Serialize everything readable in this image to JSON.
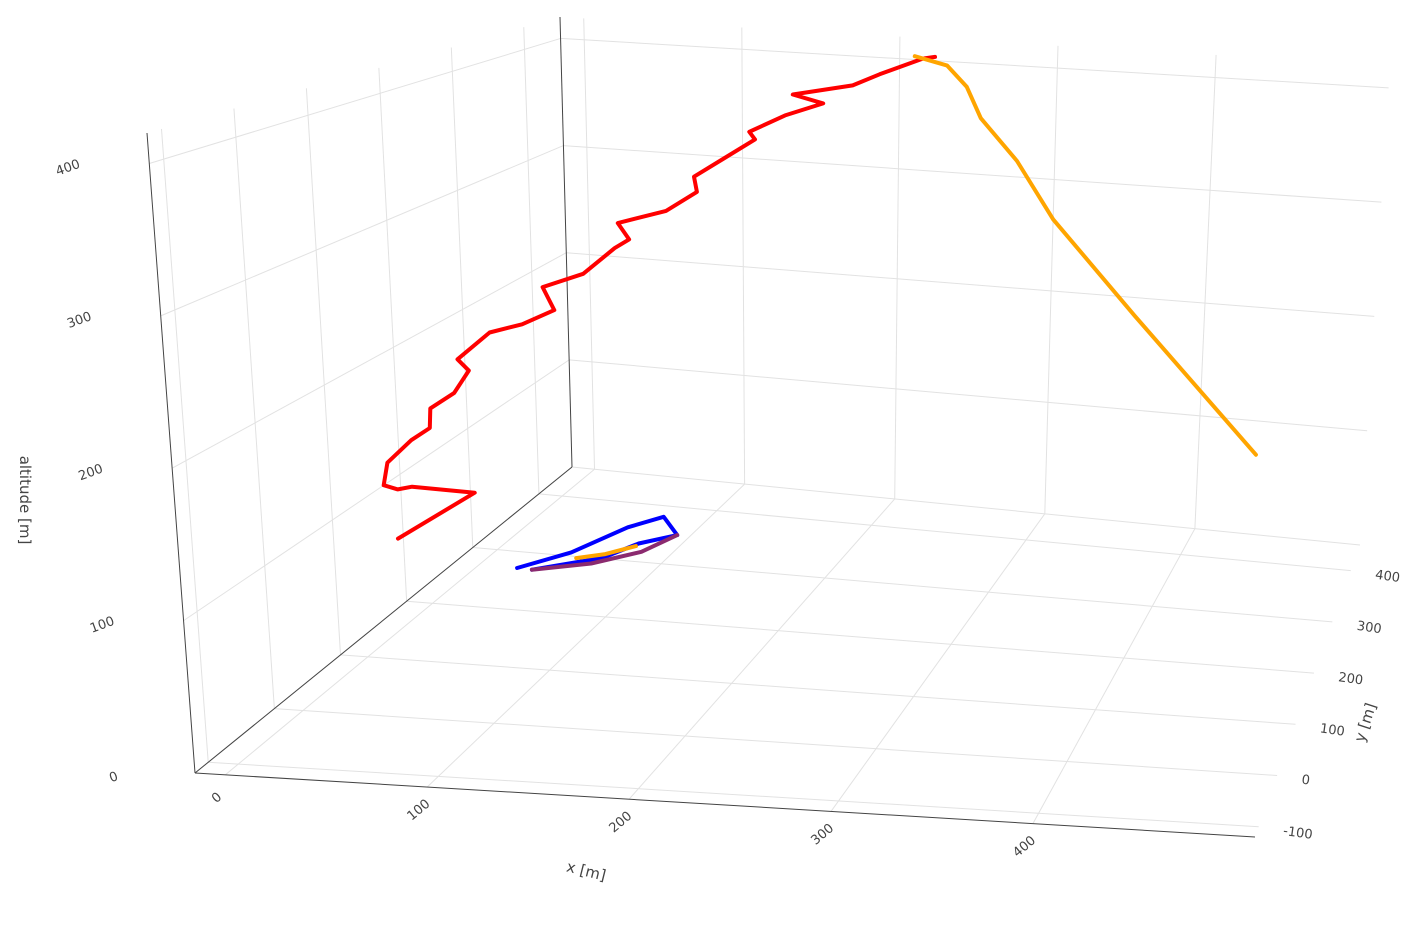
{
  "chart_data": {
    "type": "line3d",
    "title": "",
    "xlabel": "x [m]",
    "ylabel": "y [m]",
    "zlabel": "altitude [m]",
    "x_ticks": [
      "0",
      "100",
      "200",
      "300",
      "400"
    ],
    "y_ticks": [
      "-100",
      "0",
      "100",
      "200",
      "300",
      "400"
    ],
    "z_ticks": [
      "0",
      "100",
      "200",
      "300",
      "400"
    ],
    "xlim": [
      -15,
      510
    ],
    "ylim": [
      -120,
      450
    ],
    "zlim": [
      0,
      420
    ],
    "grid": true,
    "series": [
      {
        "color": "#ff0000",
        "points": [
          [
            25,
            85,
            95
          ],
          [
            55,
            120,
            120
          ],
          [
            25,
            110,
            125
          ],
          [
            10,
            130,
            115
          ],
          [
            -5,
            150,
            110
          ],
          [
            -10,
            170,
            120
          ],
          [
            0,
            180,
            135
          ],
          [
            5,
            195,
            140
          ],
          [
            0,
            210,
            150
          ],
          [
            10,
            220,
            160
          ],
          [
            15,
            230,
            175
          ],
          [
            5,
            240,
            180
          ],
          [
            20,
            250,
            200
          ],
          [
            35,
            260,
            205
          ],
          [
            50,
            270,
            215
          ],
          [
            40,
            280,
            230
          ],
          [
            60,
            290,
            240
          ],
          [
            75,
            300,
            260
          ],
          [
            80,
            310,
            265
          ],
          [
            70,
            320,
            275
          ],
          [
            95,
            330,
            285
          ],
          [
            110,
            340,
            300
          ],
          [
            105,
            350,
            310
          ],
          [
            120,
            360,
            325
          ],
          [
            135,
            370,
            340
          ],
          [
            130,
            375,
            345
          ],
          [
            150,
            380,
            360
          ],
          [
            170,
            390,
            370
          ],
          [
            150,
            395,
            375
          ],
          [
            185,
            400,
            385
          ],
          [
            200,
            405,
            395
          ],
          [
            225,
            410,
            410
          ],
          [
            230,
            420,
            410
          ]
        ]
      },
      {
        "color": "#ffa500",
        "points": [
          [
            218,
            418,
            410
          ],
          [
            240,
            410,
            405
          ],
          [
            255,
            398,
            390
          ],
          [
            270,
            370,
            370
          ],
          [
            300,
            330,
            345
          ],
          [
            330,
            285,
            310
          ],
          [
            390,
            200,
            260
          ],
          [
            470,
            100,
            190
          ]
        ]
      },
      {
        "color": "#0000ff",
        "points": [
          [
            40,
            250,
            10
          ],
          [
            75,
            270,
            15
          ],
          [
            90,
            290,
            20
          ],
          [
            110,
            300,
            25
          ],
          [
            95,
            320,
            30
          ],
          [
            80,
            300,
            28
          ],
          [
            60,
            260,
            22
          ],
          [
            35,
            240,
            15
          ]
        ]
      },
      {
        "color": "#8b2a6f",
        "points": [
          [
            40,
            250,
            10
          ],
          [
            70,
            265,
            12
          ],
          [
            95,
            280,
            18
          ],
          [
            110,
            300,
            25
          ]
        ]
      },
      {
        "color": "#ffa500",
        "points": [
          [
            60,
            268,
            14
          ],
          [
            75,
            275,
            16
          ],
          [
            90,
            285,
            20
          ]
        ]
      }
    ]
  }
}
